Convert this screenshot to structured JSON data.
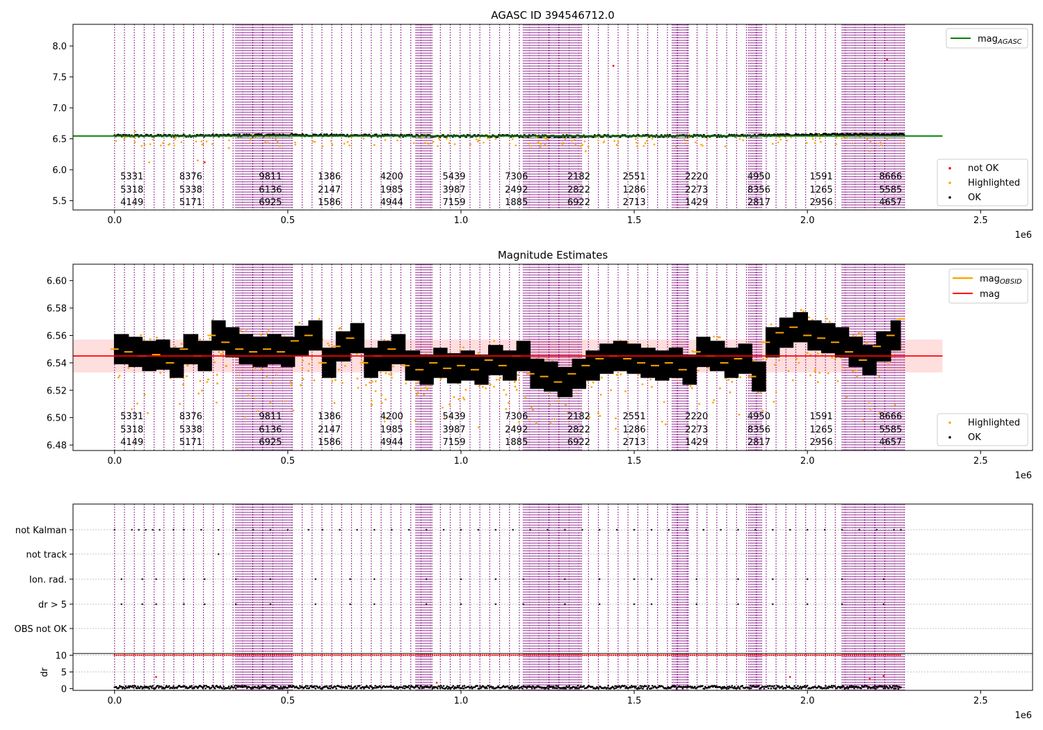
{
  "chart_data": [
    {
      "type": "scatter",
      "title": "AGASC ID 394546712.0",
      "xlabel": "",
      "ylabel": "",
      "xlim": [
        -0.12,
        2.65
      ],
      "ylim": [
        5.35,
        8.35
      ],
      "x_scale_label": "1e6",
      "xticks": [
        0.0,
        0.5,
        1.0,
        1.5,
        2.0,
        2.5
      ],
      "xtick_labels": [
        "0.0",
        "0.5",
        "1.0",
        "1.5",
        "2.0",
        "2.5"
      ],
      "yticks": [
        5.5,
        6.0,
        6.5,
        7.0,
        7.5,
        8.0
      ],
      "ytick_labels": [
        "5.5",
        "6.0",
        "6.5",
        "7.0",
        "7.5",
        "8.0"
      ],
      "reference_line": {
        "name": "mag_AGASC",
        "value": 6.545,
        "color": "#008000"
      },
      "legend_upper": [
        {
          "label": "mag",
          "subscript": "AGASC",
          "color": "#008000"
        }
      ],
      "legend_lower": [
        {
          "label": "not OK",
          "color": "#ff0000"
        },
        {
          "label": "Highlighted",
          "color": "#ffa500"
        },
        {
          "label": "OK",
          "color": "#000000"
        }
      ],
      "series": [
        {
          "name": "OK",
          "color": "#000000",
          "values_trend": [
            [
              0.0,
              6.55
            ],
            [
              0.2,
              6.55
            ],
            [
              0.5,
              6.56
            ],
            [
              1.0,
              6.545
            ],
            [
              1.5,
              6.545
            ],
            [
              1.8,
              6.55
            ],
            [
              2.0,
              6.565
            ],
            [
              2.28,
              6.57
            ]
          ]
        },
        {
          "name": "Highlighted",
          "color": "#ffa500",
          "values_outliers": [
            [
              0.06,
              6.62
            ],
            [
              0.1,
              6.12
            ],
            [
              0.24,
              6.15
            ],
            [
              0.33,
              6.35
            ],
            [
              0.6,
              6.38
            ],
            [
              0.75,
              6.4
            ],
            [
              0.92,
              6.45
            ],
            [
              1.23,
              6.42
            ],
            [
              1.36,
              6.3
            ],
            [
              1.45,
              6.4
            ],
            [
              1.9,
              6.42
            ],
            [
              2.18,
              6.3
            ]
          ]
        },
        {
          "name": "not OK",
          "color": "#ff0000",
          "values_outliers": [
            [
              1.44,
              7.68
            ],
            [
              2.23,
              7.78
            ],
            [
              0.26,
              6.12
            ]
          ]
        }
      ],
      "obsid_labels_row1": [
        "5331",
        "8376",
        "9811",
        "1386",
        "4200",
        "5439",
        "7306",
        "2182",
        "2551",
        "2220",
        "4950",
        "1591",
        "8666"
      ],
      "obsid_labels_row2": [
        "5318",
        "5338",
        "6136",
        "2147",
        "1985",
        "3987",
        "2492",
        "2822",
        "1286",
        "2273",
        "8356",
        "1265",
        "5585"
      ],
      "obsid_labels_row3": [
        "4149",
        "5171",
        "6925",
        "1586",
        "4944",
        "7159",
        "1885",
        "6922",
        "2713",
        "1429",
        "2817",
        "2956",
        "4657"
      ],
      "obsid_labels_x": [
        0.05,
        0.22,
        0.45,
        0.62,
        0.8,
        0.98,
        1.16,
        1.34,
        1.5,
        1.68,
        1.86,
        2.04,
        2.24
      ]
    },
    {
      "type": "scatter",
      "title": "Magnitude Estimates",
      "xlabel": "",
      "ylabel": "",
      "xlim": [
        -0.12,
        2.65
      ],
      "ylim": [
        6.476,
        6.612
      ],
      "x_scale_label": "1e6",
      "xticks": [
        0.0,
        0.5,
        1.0,
        1.5,
        2.0,
        2.5
      ],
      "xtick_labels": [
        "0.0",
        "0.5",
        "1.0",
        "1.5",
        "2.0",
        "2.5"
      ],
      "yticks": [
        6.48,
        6.5,
        6.52,
        6.54,
        6.56,
        6.58,
        6.6
      ],
      "ytick_labels": [
        "6.48",
        "6.50",
        "6.52",
        "6.54",
        "6.56",
        "6.58",
        "6.60"
      ],
      "reference_line": {
        "name": "mag",
        "value": 6.545,
        "color": "#ff0000"
      },
      "reference_band": [
        6.533,
        6.557
      ],
      "legend_upper": [
        {
          "label": "mag",
          "subscript": "OBSID",
          "color": "#ffa500"
        },
        {
          "label": "mag",
          "subscript": "",
          "color": "#ff0000"
        }
      ],
      "legend_lower": [
        {
          "label": "Highlighted",
          "color": "#ffa500"
        },
        {
          "label": "OK",
          "color": "#000000"
        }
      ],
      "obsid_means": [
        [
          0.0,
          6.55
        ],
        [
          0.04,
          6.548
        ],
        [
          0.08,
          6.545
        ],
        [
          0.12,
          6.546
        ],
        [
          0.16,
          6.54
        ],
        [
          0.2,
          6.55
        ],
        [
          0.24,
          6.545
        ],
        [
          0.28,
          6.56
        ],
        [
          0.32,
          6.555
        ],
        [
          0.36,
          6.55
        ],
        [
          0.4,
          6.548
        ],
        [
          0.44,
          6.55
        ],
        [
          0.48,
          6.548
        ],
        [
          0.52,
          6.556
        ],
        [
          0.56,
          6.56
        ],
        [
          0.6,
          6.54
        ],
        [
          0.64,
          6.552
        ],
        [
          0.68,
          6.558
        ],
        [
          0.72,
          6.54
        ],
        [
          0.76,
          6.545
        ],
        [
          0.8,
          6.55
        ],
        [
          0.84,
          6.538
        ],
        [
          0.88,
          6.535
        ],
        [
          0.92,
          6.54
        ],
        [
          0.96,
          6.536
        ],
        [
          1.0,
          6.538
        ],
        [
          1.04,
          6.535
        ],
        [
          1.08,
          6.542
        ],
        [
          1.12,
          6.538
        ],
        [
          1.16,
          6.545
        ],
        [
          1.2,
          6.532
        ],
        [
          1.24,
          6.53
        ],
        [
          1.28,
          6.526
        ],
        [
          1.32,
          6.532
        ],
        [
          1.36,
          6.538
        ],
        [
          1.4,
          6.543
        ],
        [
          1.44,
          6.545
        ],
        [
          1.48,
          6.543
        ],
        [
          1.52,
          6.54
        ],
        [
          1.56,
          6.538
        ],
        [
          1.6,
          6.54
        ],
        [
          1.64,
          6.535
        ],
        [
          1.68,
          6.548
        ],
        [
          1.72,
          6.545
        ],
        [
          1.76,
          6.54
        ],
        [
          1.8,
          6.543
        ],
        [
          1.84,
          6.53
        ],
        [
          1.88,
          6.555
        ],
        [
          1.92,
          6.562
        ],
        [
          1.96,
          6.566
        ],
        [
          2.0,
          6.56
        ],
        [
          2.04,
          6.558
        ],
        [
          2.08,
          6.555
        ],
        [
          2.12,
          6.548
        ],
        [
          2.16,
          6.542
        ],
        [
          2.2,
          6.552
        ],
        [
          2.24,
          6.56
        ],
        [
          2.27,
          6.572
        ]
      ],
      "obsid_spread": 0.011,
      "obsid_labels_row1": [
        "5331",
        "8376",
        "9811",
        "1386",
        "4200",
        "5439",
        "7306",
        "2182",
        "2551",
        "2220",
        "4950",
        "1591",
        "8666"
      ],
      "obsid_labels_row2": [
        "5318",
        "5338",
        "6136",
        "2147",
        "1985",
        "3987",
        "2492",
        "2822",
        "1286",
        "2273",
        "8356",
        "1265",
        "5585"
      ],
      "obsid_labels_row3": [
        "4149",
        "5171",
        "6925",
        "1586",
        "4944",
        "7159",
        "1885",
        "6922",
        "2713",
        "1429",
        "2817",
        "2956",
        "4657"
      ],
      "obsid_labels_x": [
        0.05,
        0.22,
        0.45,
        0.62,
        0.8,
        0.98,
        1.16,
        1.34,
        1.5,
        1.68,
        1.86,
        2.04,
        2.24
      ]
    },
    {
      "type": "scatter",
      "title": "",
      "xlabel": "",
      "ylabel": "",
      "xlim": [
        -0.12,
        2.65
      ],
      "ylim": [
        -0.5,
        1.05
      ],
      "flag_categories": [
        "not Kalman",
        "not track",
        "Ion. rad.",
        "dr > 5",
        "OBS not OK"
      ],
      "flag_points": {
        "not Kalman": [
          0.0,
          0.05,
          0.07,
          0.09,
          0.11,
          0.13,
          0.17,
          0.2,
          0.25,
          0.3,
          0.35,
          0.4,
          0.45,
          0.5,
          0.56,
          0.6,
          0.65,
          0.7,
          0.75,
          0.8,
          0.85,
          0.9,
          0.95,
          1.0,
          1.05,
          1.1,
          1.15,
          1.2,
          1.25,
          1.3,
          1.35,
          1.4,
          1.45,
          1.5,
          1.55,
          1.6,
          1.65,
          1.7,
          1.75,
          1.8,
          1.85,
          1.9,
          1.95,
          2.0,
          2.05,
          2.1,
          2.15,
          2.2,
          2.25,
          2.27
        ],
        "not track": [
          0.3
        ],
        "Ion. rad.": [
          0.02,
          0.08,
          0.12,
          0.2,
          0.26,
          0.35,
          0.45,
          0.58,
          0.68,
          0.75,
          0.9,
          1.0,
          1.1,
          1.18,
          1.3,
          1.4,
          1.5,
          1.55,
          1.68,
          1.8,
          1.9,
          2.0,
          2.1,
          2.22
        ],
        "dr > 5": [
          0.02,
          0.08,
          0.12,
          0.2,
          0.26,
          0.35,
          0.45,
          0.58,
          0.68,
          0.75,
          0.9,
          1.0,
          1.1,
          1.18,
          1.3,
          1.4,
          1.5,
          1.55,
          1.68,
          1.8,
          1.9,
          2.0,
          2.1,
          2.22
        ],
        "OBS not OK": []
      }
    },
    {
      "type": "scatter",
      "title": "",
      "xlabel": "",
      "ylabel": "dr",
      "xlim": [
        -0.12,
        2.65
      ],
      "ylim": [
        -0.5,
        10.5
      ],
      "x_scale_label": "1e6",
      "xticks": [
        0.0,
        0.5,
        1.0,
        1.5,
        2.0,
        2.5
      ],
      "xtick_labels": [
        "0.0",
        "0.5",
        "1.0",
        "1.5",
        "2.0",
        "2.5"
      ],
      "yticks": [
        0,
        5,
        10
      ],
      "ytick_labels": [
        "0",
        "5",
        "10"
      ],
      "clipped_points_color": "#ff0000",
      "clipped_value": 10,
      "outliers": [
        [
          0.12,
          3.5
        ],
        [
          0.93,
          1.8
        ],
        [
          1.95,
          3.5
        ],
        [
          2.18,
          3.0
        ],
        [
          2.22,
          3.8
        ]
      ]
    }
  ],
  "obsid_boundaries": {
    "color": "#800080",
    "dense_ranges": [
      [
        0.35,
        0.51
      ],
      [
        0.87,
        0.92
      ],
      [
        1.18,
        1.35
      ],
      [
        1.61,
        1.66
      ],
      [
        1.83,
        1.87
      ],
      [
        2.1,
        2.28
      ]
    ],
    "sparse_range": [
      0.0,
      2.28
    ]
  }
}
